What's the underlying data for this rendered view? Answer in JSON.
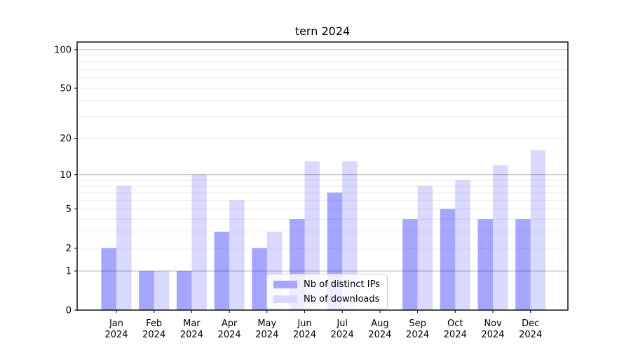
{
  "title": "tern 2024",
  "chart_data": {
    "type": "bar",
    "title": "tern 2024",
    "categories": [
      "Jan 2024",
      "Feb 2024",
      "Mar 2024",
      "Apr 2024",
      "May 2024",
      "Jun 2024",
      "Jul 2024",
      "Aug 2024",
      "Sep 2024",
      "Oct 2024",
      "Nov 2024",
      "Dec 2024"
    ],
    "series": [
      {
        "name": "Nb of distinct IPs",
        "color": "#0000ff",
        "alpha": 0.35,
        "swatch_hex": "#a6a6ff",
        "values": [
          2,
          1,
          1,
          3,
          2,
          4,
          7,
          0,
          4,
          5,
          4,
          4
        ]
      },
      {
        "name": "Nb of downloads",
        "color": "#0000ff",
        "alpha": 0.15,
        "swatch_hex": "#d9d9ff",
        "values": [
          8,
          1,
          10,
          6,
          3,
          13,
          13,
          0,
          8,
          9,
          12,
          16
        ]
      }
    ],
    "xlabel": "",
    "ylabel": "",
    "yscale": "log1p",
    "ylim": [
      0,
      115
    ],
    "ytick_values": [
      0,
      1,
      2,
      5,
      10,
      20,
      50,
      100
    ],
    "ytick_labels": [
      "0",
      "1",
      "2",
      "5",
      "10",
      "20",
      "50",
      "100"
    ],
    "grid": {
      "major_values": [
        1,
        10,
        100
      ],
      "minor_steps_per_decade": [
        2,
        3,
        4,
        5,
        6,
        7,
        8,
        9
      ],
      "major_color": "#b0b0b0",
      "minor_color": "#ebebeb"
    },
    "legend_position": "lower center",
    "axis_color": "#000000"
  }
}
